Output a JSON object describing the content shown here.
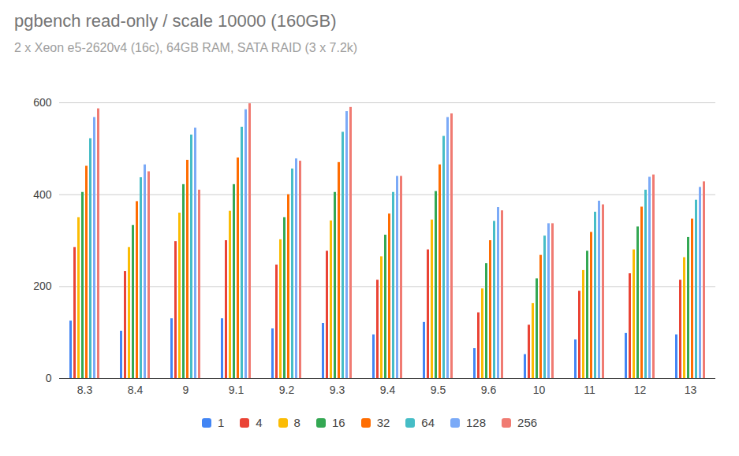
{
  "chart_data": {
    "type": "bar",
    "title": "pgbench read-only / scale 10000 (160GB)",
    "subtitle": "2 x Xeon e5-2620v4 (16c), 64GB RAM, SATA RAID (3 x 7.2k)",
    "categories": [
      "8.3",
      "8.4",
      "9",
      "9.1",
      "9.2",
      "9.3",
      "9.4",
      "9.5",
      "9.6",
      "10",
      "11",
      "12",
      "13"
    ],
    "series": [
      {
        "name": "1",
        "color": "#4285f4",
        "values": [
          125,
          103,
          130,
          130,
          108,
          120,
          95,
          122,
          65,
          52,
          84,
          98,
          95
        ]
      },
      {
        "name": "4",
        "color": "#ea4335",
        "values": [
          285,
          233,
          298,
          300,
          247,
          277,
          214,
          280,
          143,
          116,
          190,
          228,
          214
        ]
      },
      {
        "name": "8",
        "color": "#fbbc04",
        "values": [
          350,
          285,
          360,
          364,
          302,
          343,
          265,
          345,
          195,
          163,
          235,
          280,
          263
        ]
      },
      {
        "name": "16",
        "color": "#34a853",
        "values": [
          405,
          333,
          422,
          422,
          350,
          405,
          312,
          407,
          250,
          217,
          277,
          330,
          307
        ]
      },
      {
        "name": "32",
        "color": "#ff6d01",
        "values": [
          462,
          385,
          475,
          480,
          400,
          470,
          358,
          465,
          300,
          268,
          318,
          373,
          347
        ]
      },
      {
        "name": "64",
        "color": "#46bdc6",
        "values": [
          522,
          437,
          530,
          547,
          456,
          536,
          405,
          527,
          342,
          310,
          362,
          410,
          388
        ]
      },
      {
        "name": "128",
        "color": "#7baaf7",
        "values": [
          568,
          465,
          545,
          585,
          478,
          581,
          440,
          568,
          372,
          337,
          386,
          438,
          416
        ]
      },
      {
        "name": "256",
        "color": "#f07b72",
        "values": [
          587,
          450,
          410,
          598,
          473,
          590,
          440,
          576,
          365,
          337,
          378,
          443,
          428
        ]
      }
    ],
    "ylim": [
      0,
      600
    ],
    "yticks": [
      0,
      200,
      400,
      600
    ],
    "grid": true,
    "legend": "bottom"
  }
}
